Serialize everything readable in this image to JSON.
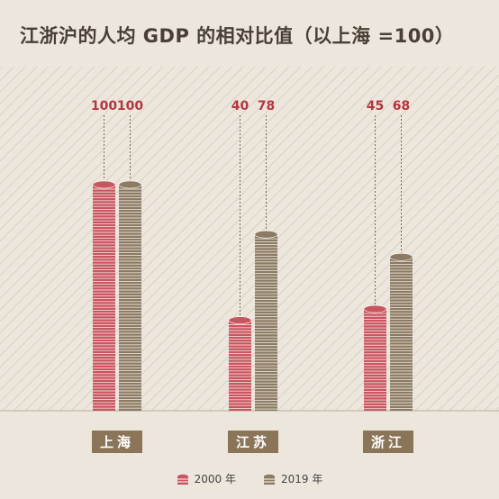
{
  "title": "江浙沪的人均 GDP 的相对比值（以上海 =100）",
  "colors": {
    "background": "#ece6dc",
    "series_2000": "#c9555e",
    "series_2019": "#8c7a62",
    "label_2000": "#b3373f",
    "label_2019": "#b3373f",
    "category_box": "#8b7558"
  },
  "chart_data": {
    "type": "bar",
    "title": "江浙沪的人均 GDP 的相对比值（以上海 =100）",
    "categories": [
      "上海",
      "江苏",
      "浙江"
    ],
    "series": [
      {
        "name": "2000 年",
        "values": [
          100,
          40,
          45
        ]
      },
      {
        "name": "2019 年",
        "values": [
          100,
          78,
          68
        ]
      }
    ],
    "ylim": [
      0,
      100
    ],
    "grid": false,
    "legend": "bottom"
  }
}
